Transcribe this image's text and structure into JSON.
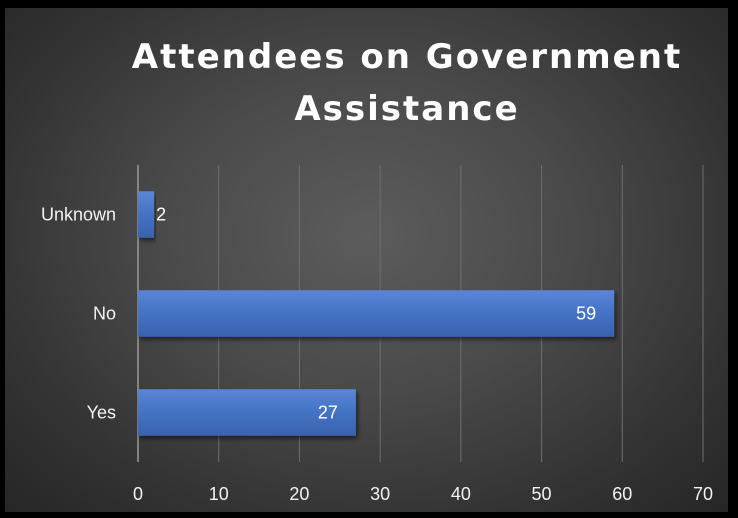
{
  "chart_data": {
    "type": "bar",
    "orientation": "horizontal",
    "title": "Attendees on Government Assistance",
    "title_lines": [
      "Attendees on Government",
      "Assistance"
    ],
    "categories": [
      "Yes",
      "No",
      "Unknown"
    ],
    "values": [
      27,
      59,
      2
    ],
    "xlim": [
      0,
      70
    ],
    "x_ticks": [
      0,
      10,
      20,
      30,
      40,
      50,
      60,
      70
    ],
    "grid": true,
    "legend": "none",
    "data_labels": true,
    "colors": {
      "bar": "#4472c4",
      "gridline": "#6e6e6e",
      "axis": "#9a9a9a",
      "text": "#f2f2f2"
    }
  }
}
